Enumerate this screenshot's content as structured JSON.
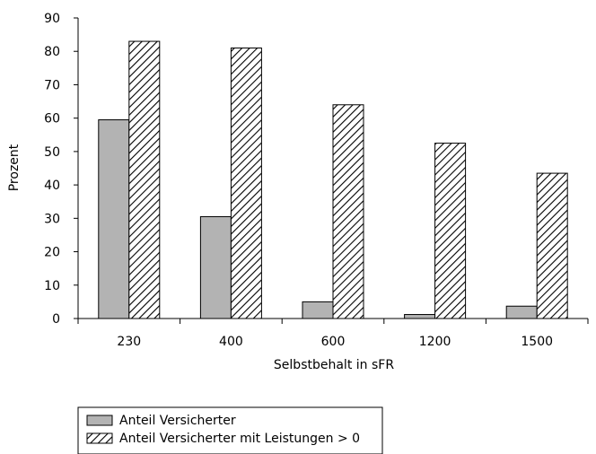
{
  "chart_data": {
    "type": "bar",
    "categories": [
      "230",
      "400",
      "600",
      "1200",
      "1500"
    ],
    "series": [
      {
        "name": "Anteil Versicherter",
        "values": [
          59.5,
          30.5,
          5,
          1.2,
          3.7
        ],
        "fill": "#b3b3b3"
      },
      {
        "name": "Anteil Versicherter mit Leistungen > 0",
        "values": [
          83,
          81,
          64,
          52.5,
          43.5
        ],
        "fill": "hatch"
      }
    ],
    "xlabel": "Selbstbehalt in sFR",
    "ylabel": "Prozent",
    "ylim": [
      0,
      90
    ],
    "yticks": [
      0,
      10,
      20,
      30,
      40,
      50,
      60,
      70,
      80,
      90
    ],
    "grid": false,
    "legend": "bottom-left"
  }
}
